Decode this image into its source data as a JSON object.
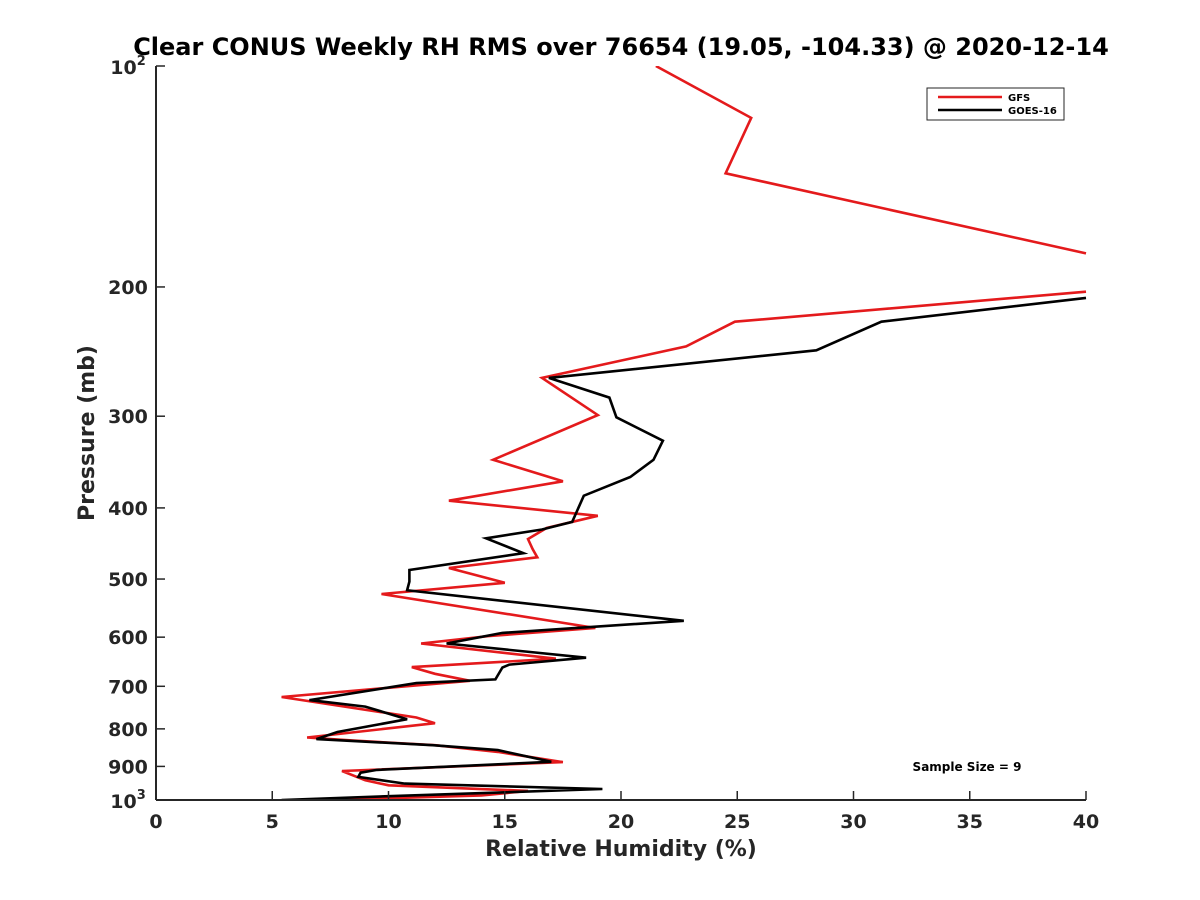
{
  "chart_data": {
    "type": "line",
    "title": "Clear CONUS Weekly RH RMS over 76654 (19.05, -104.33) @ 2020-12-14",
    "xlabel": "Relative Humidity (%)",
    "ylabel": "Pressure (mb)",
    "xlim": [
      0,
      40
    ],
    "ylim": [
      100,
      1000
    ],
    "y_scale": "log",
    "y_reversed": true,
    "x_ticks": [
      0,
      5,
      10,
      15,
      20,
      25,
      30,
      35,
      40
    ],
    "x_tick_labels": [
      "0",
      "5",
      "10",
      "15",
      "20",
      "25",
      "30",
      "35",
      "40"
    ],
    "y_ticks": [
      200,
      300,
      400,
      500,
      600,
      700,
      800,
      900
    ],
    "y_tick_labels": [
      "200",
      "300",
      "400",
      "500",
      "600",
      "700",
      "800",
      "900"
    ],
    "y_top_label": {
      "base": "10",
      "exp": "2"
    },
    "y_bottom_label": {
      "base": "10",
      "exp": "3"
    },
    "legend_position": "top-right",
    "annotation": "Sample Size = 9",
    "series": [
      {
        "name": "GFS",
        "color": "#e41a1c",
        "points": [
          [
            21.5,
            100
          ],
          [
            25.6,
            117.7
          ],
          [
            24.5,
            140
          ],
          [
            40,
            180
          ],
          [
            null,
            null
          ],
          [
            40,
            203
          ],
          [
            24.9,
            223
          ],
          [
            22.8,
            241
          ],
          [
            16.6,
            266
          ],
          [
            19.0,
            299
          ],
          [
            14.5,
            344
          ],
          [
            17.5,
            368
          ],
          [
            12.6,
            391
          ],
          [
            19.0,
            410
          ],
          [
            16.8,
            426
          ],
          [
            16.0,
            441
          ],
          [
            16.2,
            455
          ],
          [
            16.4,
            467
          ],
          [
            12.6,
            483
          ],
          [
            15.0,
            506
          ],
          [
            9.7,
            524
          ],
          [
            18.9,
            583
          ],
          [
            14.3,
            598
          ],
          [
            11.4,
            612
          ],
          [
            17.2,
            642
          ],
          [
            11.0,
            659
          ],
          [
            12.0,
            673
          ],
          [
            13.5,
            688
          ],
          [
            5.4,
            724
          ],
          [
            11.2,
            772
          ],
          [
            12.0,
            786
          ],
          [
            6.5,
            822
          ],
          [
            8.5,
            830
          ],
          [
            12.0,
            842
          ],
          [
            14.7,
            860
          ],
          [
            17.5,
            888
          ],
          [
            8.0,
            913
          ],
          [
            9.0,
            940
          ],
          [
            10.0,
            955
          ],
          [
            16.0,
            972
          ],
          [
            14.0,
            986
          ],
          [
            7.5,
            1000
          ]
        ]
      },
      {
        "name": "GOES-16",
        "color": "#000000",
        "points": [
          [
            40,
            207
          ],
          [
            31.2,
            223
          ],
          [
            28.4,
            244
          ],
          [
            16.9,
            266
          ],
          [
            19.5,
            283
          ],
          [
            19.8,
            301
          ],
          [
            21.8,
            324
          ],
          [
            21.4,
            344
          ],
          [
            20.4,
            363
          ],
          [
            18.4,
            385
          ],
          [
            18.2,
            398
          ],
          [
            17.9,
            418
          ],
          [
            16.6,
            428
          ],
          [
            14.2,
            440
          ],
          [
            15.8,
            461
          ],
          [
            10.9,
            486
          ],
          [
            10.9,
            504
          ],
          [
            10.8,
            518
          ],
          [
            22.7,
            570
          ],
          [
            14.9,
            592
          ],
          [
            12.5,
            612
          ],
          [
            18.5,
            640
          ],
          [
            15.2,
            654
          ],
          [
            14.9,
            660
          ],
          [
            14.6,
            685
          ],
          [
            11.2,
            693
          ],
          [
            6.6,
            731
          ],
          [
            9.0,
            746
          ],
          [
            10.8,
            776
          ],
          [
            7.8,
            808
          ],
          [
            6.9,
            826
          ],
          [
            11.9,
            842
          ],
          [
            14.7,
            855
          ],
          [
            17.0,
            887
          ],
          [
            9.5,
            910
          ],
          [
            8.8,
            918
          ],
          [
            8.7,
            930
          ],
          [
            10.7,
            950
          ],
          [
            19.2,
            966
          ],
          [
            10.0,
            988
          ],
          [
            5.4,
            1000
          ]
        ]
      }
    ]
  }
}
